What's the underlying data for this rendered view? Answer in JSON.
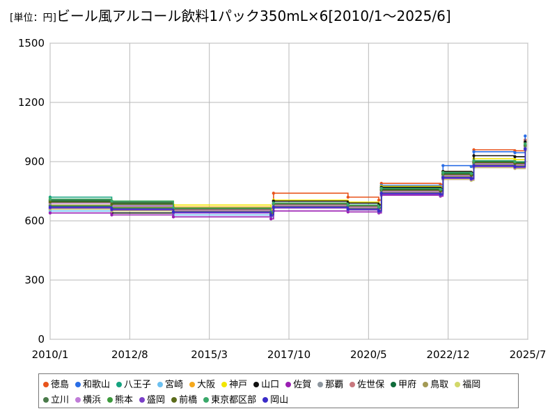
{
  "chart_data": {
    "type": "line",
    "title_unit": "[単位：円]",
    "title": "ビール風アルコール飲料1パック350mL×6[2010/1～2025/6]",
    "xlabel": "",
    "ylabel": "",
    "xlim": [
      "2010/1",
      "2025/7"
    ],
    "ylim": [
      0,
      1500
    ],
    "y_ticks": [
      0,
      300,
      600,
      900,
      1200,
      1500
    ],
    "x_ticks": [
      "2010/1",
      "2012/8",
      "2015/3",
      "2017/10",
      "2020/5",
      "2022/12",
      "2025/7"
    ],
    "grid": true,
    "legend_position": "bottom",
    "series": [
      {
        "name": "徳島",
        "color": "#e8541c",
        "x": [
          "2010/1",
          "2012/1",
          "2014/1",
          "2017/3",
          "2017/4",
          "2019/9",
          "2020/9",
          "2020/10",
          "2022/9",
          "2022/10",
          "2023/9",
          "2023/10",
          "2025/2",
          "2025/6"
        ],
        "values": [
          690,
          680,
          665,
          660,
          740,
          720,
          705,
          790,
          785,
          850,
          845,
          960,
          955,
          1010
        ]
      },
      {
        "name": "和歌山",
        "color": "#2a6ee6",
        "x": [
          "2010/1",
          "2012/1",
          "2014/1",
          "2017/3",
          "2017/4",
          "2019/9",
          "2020/9",
          "2020/10",
          "2022/9",
          "2022/10",
          "2023/9",
          "2023/10",
          "2025/2",
          "2025/6"
        ],
        "values": [
          680,
          660,
          650,
          640,
          700,
          690,
          680,
          780,
          775,
          880,
          875,
          950,
          945,
          1030
        ]
      },
      {
        "name": "八王子",
        "color": "#14a37f",
        "x": [
          "2010/1",
          "2012/1",
          "2014/1",
          "2017/3",
          "2017/4",
          "2019/9",
          "2020/9",
          "2020/10",
          "2022/9",
          "2022/10",
          "2023/9",
          "2023/10",
          "2025/2",
          "2025/6"
        ],
        "values": [
          720,
          700,
          660,
          640,
          690,
          680,
          670,
          760,
          755,
          840,
          835,
          900,
          895,
          990
        ]
      },
      {
        "name": "宮崎",
        "color": "#6cc0f0",
        "x": [
          "2010/1",
          "2012/1",
          "2014/1",
          "2017/3",
          "2017/4",
          "2019/9",
          "2020/9",
          "2020/10",
          "2022/9",
          "2022/10",
          "2023/9",
          "2023/10",
          "2025/2",
          "2025/6"
        ],
        "values": [
          650,
          640,
          630,
          620,
          670,
          660,
          650,
          740,
          735,
          820,
          815,
          880,
          875,
          970
        ]
      },
      {
        "name": "大阪",
        "color": "#f5a81c",
        "x": [
          "2010/1",
          "2012/1",
          "2014/1",
          "2017/3",
          "2017/4",
          "2019/9",
          "2020/9",
          "2020/10",
          "2022/9",
          "2022/10",
          "2023/9",
          "2023/10",
          "2025/2",
          "2025/6"
        ],
        "values": [
          700,
          690,
          670,
          650,
          690,
          680,
          670,
          760,
          755,
          830,
          825,
          900,
          895,
          980
        ]
      },
      {
        "name": "神戸",
        "color": "#f2e600",
        "x": [
          "2010/1",
          "2012/1",
          "2014/1",
          "2017/3",
          "2017/4",
          "2019/9",
          "2020/9",
          "2020/10",
          "2022/9",
          "2022/10",
          "2023/9",
          "2023/10",
          "2025/2",
          "2025/6"
        ],
        "values": [
          710,
          700,
          680,
          655,
          705,
          695,
          685,
          775,
          770,
          850,
          845,
          915,
          910,
          995
        ]
      },
      {
        "name": "山口",
        "color": "#111111",
        "x": [
          "2010/1",
          "2012/1",
          "2014/1",
          "2017/3",
          "2017/4",
          "2019/9",
          "2020/9",
          "2020/10",
          "2022/9",
          "2022/10",
          "2023/9",
          "2023/10",
          "2025/2",
          "2025/6"
        ],
        "values": [
          660,
          640,
          640,
          630,
          700,
          690,
          680,
          770,
          765,
          850,
          845,
          930,
          925,
          1000
        ]
      },
      {
        "name": "佐賀",
        "color": "#9a1fb3",
        "x": [
          "2010/1",
          "2012/1",
          "2014/1",
          "2017/3",
          "2017/4",
          "2019/9",
          "2020/9",
          "2020/10",
          "2022/9",
          "2022/10",
          "2023/9",
          "2023/10",
          "2025/2",
          "2025/6"
        ],
        "values": [
          640,
          630,
          620,
          610,
          650,
          645,
          640,
          730,
          725,
          810,
          805,
          870,
          865,
          960
        ]
      },
      {
        "name": "那覇",
        "color": "#8d969e",
        "x": [
          "2010/1",
          "2012/1",
          "2014/1",
          "2017/3",
          "2017/4",
          "2019/9",
          "2020/9",
          "2020/10",
          "2022/9",
          "2022/10",
          "2023/9",
          "2023/10",
          "2025/2",
          "2025/6"
        ],
        "values": [
          690,
          680,
          660,
          640,
          680,
          670,
          660,
          750,
          745,
          830,
          825,
          890,
          885,
          975
        ]
      },
      {
        "name": "佐世保",
        "color": "#c8787e",
        "x": [
          "2010/1",
          "2012/1",
          "2014/1",
          "2017/3",
          "2017/4",
          "2019/9",
          "2020/9",
          "2020/10",
          "2022/9",
          "2022/10",
          "2023/9",
          "2023/10",
          "2025/2",
          "2025/6"
        ],
        "values": [
          670,
          660,
          645,
          630,
          670,
          660,
          650,
          740,
          735,
          820,
          815,
          880,
          875,
          965
        ]
      },
      {
        "name": "甲府",
        "color": "#0f6b3a",
        "x": [
          "2010/1",
          "2012/1",
          "2014/1",
          "2017/3",
          "2017/4",
          "2019/9",
          "2020/9",
          "2020/10",
          "2022/9",
          "2022/10",
          "2023/9",
          "2023/10",
          "2025/2",
          "2025/6"
        ],
        "values": [
          700,
          690,
          655,
          640,
          690,
          680,
          670,
          760,
          755,
          840,
          835,
          900,
          895,
          985
        ]
      },
      {
        "name": "鳥取",
        "color": "#a39a55",
        "x": [
          "2010/1",
          "2012/1",
          "2014/1",
          "2017/3",
          "2017/4",
          "2019/9",
          "2020/9",
          "2020/10",
          "2022/9",
          "2022/10",
          "2023/9",
          "2023/10",
          "2025/2",
          "2025/6"
        ],
        "values": [
          680,
          670,
          650,
          635,
          675,
          665,
          655,
          745,
          740,
          825,
          820,
          885,
          880,
          970
        ]
      },
      {
        "name": "福岡",
        "color": "#d2d86a",
        "x": [
          "2010/1",
          "2012/1",
          "2014/1",
          "2017/3",
          "2017/4",
          "2019/9",
          "2020/9",
          "2020/10",
          "2022/9",
          "2022/10",
          "2023/9",
          "2023/10",
          "2025/2",
          "2025/6"
        ],
        "values": [
          660,
          650,
          640,
          625,
          665,
          655,
          645,
          735,
          730,
          810,
          805,
          870,
          865,
          955
        ]
      },
      {
        "name": "立川",
        "color": "#4a7a4a",
        "x": [
          "2010/1",
          "2012/1",
          "2014/1",
          "2017/3",
          "2017/4",
          "2019/9",
          "2020/9",
          "2020/10",
          "2022/9",
          "2022/10",
          "2023/9",
          "2023/10",
          "2025/2",
          "2025/6"
        ],
        "values": [
          705,
          695,
          660,
          645,
          685,
          675,
          665,
          755,
          750,
          835,
          830,
          895,
          890,
          980
        ]
      },
      {
        "name": "横浜",
        "color": "#c07cd8",
        "x": [
          "2010/1",
          "2012/1",
          "2014/1",
          "2017/3",
          "2017/4",
          "2019/9",
          "2020/9",
          "2020/10",
          "2022/9",
          "2022/10",
          "2023/9",
          "2023/10",
          "2025/2",
          "2025/6"
        ],
        "values": [
          690,
          675,
          655,
          640,
          680,
          670,
          660,
          750,
          745,
          830,
          825,
          890,
          885,
          975
        ]
      },
      {
        "name": "熊本",
        "color": "#3c9a3c",
        "x": [
          "2010/1",
          "2012/1",
          "2014/1",
          "2017/3",
          "2017/4",
          "2019/9",
          "2020/9",
          "2020/10",
          "2022/9",
          "2022/10",
          "2023/9",
          "2023/10",
          "2025/2",
          "2025/6"
        ],
        "values": [
          675,
          665,
          645,
          630,
          670,
          660,
          650,
          740,
          735,
          820,
          815,
          880,
          875,
          965
        ]
      },
      {
        "name": "盛岡",
        "color": "#7a3fc8",
        "x": [
          "2010/1",
          "2012/1",
          "2014/1",
          "2017/3",
          "2017/4",
          "2019/9",
          "2020/9",
          "2020/10",
          "2022/9",
          "2022/10",
          "2023/9",
          "2023/10",
          "2025/2",
          "2025/6"
        ],
        "values": [
          665,
          655,
          640,
          625,
          665,
          655,
          645,
          735,
          730,
          815,
          810,
          875,
          870,
          960
        ]
      },
      {
        "name": "前橋",
        "color": "#5b6b1a",
        "x": [
          "2010/1",
          "2012/1",
          "2014/1",
          "2017/3",
          "2017/4",
          "2019/9",
          "2020/9",
          "2020/10",
          "2022/9",
          "2022/10",
          "2023/9",
          "2023/10",
          "2025/2",
          "2025/6"
        ],
        "values": [
          695,
          685,
          660,
          640,
          685,
          675,
          665,
          755,
          750,
          835,
          830,
          895,
          890,
          980
        ]
      },
      {
        "name": "東京都区部",
        "color": "#3aa86a",
        "x": [
          "2010/1",
          "2012/1",
          "2014/1",
          "2017/3",
          "2017/4",
          "2019/9",
          "2020/9",
          "2020/10",
          "2022/9",
          "2022/10",
          "2023/9",
          "2023/10",
          "2025/2",
          "2025/6"
        ],
        "values": [
          710,
          700,
          665,
          645,
          690,
          680,
          670,
          765,
          760,
          845,
          840,
          905,
          900,
          990
        ]
      },
      {
        "name": "岡山",
        "color": "#3a2cc8",
        "x": [
          "2010/1",
          "2012/1",
          "2014/1",
          "2017/3",
          "2017/4",
          "2019/9",
          "2020/9",
          "2020/10",
          "2022/9",
          "2022/10",
          "2023/9",
          "2023/10",
          "2025/2",
          "2025/6"
        ],
        "values": [
          670,
          660,
          645,
          630,
          670,
          660,
          650,
          740,
          735,
          820,
          815,
          880,
          875,
          965
        ]
      }
    ]
  }
}
